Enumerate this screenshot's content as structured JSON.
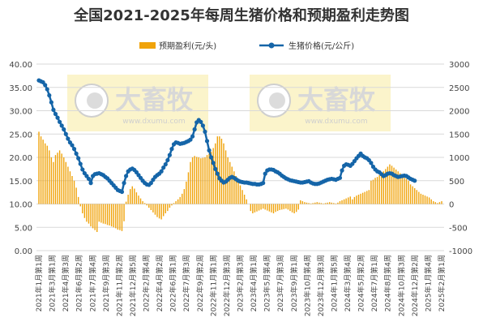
{
  "chart_data": {
    "type": "bar+line",
    "title": "全国2021-2025年每周生猪价格和预期盈利走势图",
    "legend": {
      "placement": "top",
      "entries": [
        {
          "name": "预期盈利(元/头)",
          "kind": "bar",
          "color": "#F0A30A"
        },
        {
          "name": "生猪价格(元/公斤)",
          "kind": "line",
          "color": "#1565A8"
        }
      ]
    },
    "watermark_text": "www.dxumu.com",
    "left_axis": {
      "min": 0,
      "max": 40,
      "step": 5,
      "ticks": [
        "0.00",
        "5.00",
        "10.00",
        "15.00",
        "20.00",
        "25.00",
        "30.00",
        "35.00",
        "40.00"
      ]
    },
    "right_axis": {
      "min": -1000,
      "max": 3000,
      "step": 500,
      "ticks": [
        "-1000",
        "-500",
        "0",
        "500",
        "1000",
        "1500",
        "2000",
        "2500",
        "3000"
      ]
    },
    "x_tick_labels": [
      "2021年1月第1周",
      "2021年3月第1周",
      "2021年4月第3周",
      "2021年6月第2周",
      "2021年7月第4周",
      "2021年9月第3周",
      "2021年11月第2周",
      "2021年12月第5周",
      "2022年2月第4周",
      "2022年4月第2周",
      "2022年6月第1周",
      "2022年7月第3周",
      "2022年9月第2周",
      "2022年11月第1周",
      "2022年12月第3周",
      "2023年2月第3周",
      "2023年4月第1周",
      "2023年5月第4周",
      "2023年7月第3周",
      "2023年9月第1周",
      "2023年10月第4周",
      "2023年12月第3周",
      "2024年1月第5周",
      "2024年3月第4周",
      "2024年5月第2周",
      "2024年7月第1周",
      "2024年8月第4周",
      "2024年10月第3周",
      "2024年12月第2周",
      "2025年1月第4周",
      "2025年2月第1周"
    ],
    "series": [
      {
        "name": "生猪价格(元/公斤)",
        "axis": "left",
        "values": [
          36.5,
          36.3,
          36.1,
          35.5,
          34.6,
          33.3,
          31.8,
          30.2,
          29.3,
          28.5,
          27.6,
          26.8,
          26.0,
          25.0,
          24.0,
          23.2,
          22.6,
          21.8,
          20.8,
          19.8,
          18.6,
          17.4,
          16.6,
          16.0,
          15.4,
          14.5,
          16.0,
          16.4,
          16.5,
          16.6,
          16.4,
          16.2,
          15.8,
          15.5,
          15.0,
          14.5,
          14.0,
          13.5,
          13.0,
          12.8,
          12.6,
          14.5,
          16.0,
          17.0,
          17.4,
          17.6,
          17.3,
          16.8,
          16.2,
          15.6,
          15.0,
          14.5,
          14.2,
          14.1,
          14.5,
          15.2,
          15.8,
          16.2,
          16.5,
          17.0,
          17.8,
          18.5,
          19.4,
          20.5,
          21.8,
          22.8,
          23.2,
          23.1,
          22.9,
          23.0,
          23.1,
          23.3,
          23.5,
          23.8,
          24.5,
          26.0,
          27.5,
          28.0,
          27.6,
          26.8,
          25.5,
          23.5,
          21.5,
          20.0,
          18.8,
          17.5,
          16.5,
          15.5,
          15.0,
          14.6,
          14.8,
          15.2,
          15.6,
          15.8,
          15.6,
          15.3,
          15.0,
          14.8,
          14.7,
          14.6,
          14.6,
          14.5,
          14.4,
          14.3,
          14.3,
          14.2,
          14.2,
          14.3,
          14.5,
          16.5,
          17.2,
          17.4,
          17.4,
          17.3,
          17.0,
          16.8,
          16.5,
          16.1,
          15.8,
          15.5,
          15.3,
          15.1,
          15.0,
          14.9,
          14.8,
          14.7,
          14.6,
          14.6,
          14.7,
          14.8,
          14.9,
          14.6,
          14.4,
          14.3,
          14.3,
          14.4,
          14.6,
          14.8,
          15.0,
          15.2,
          15.3,
          15.4,
          15.3,
          15.2,
          15.4,
          15.6,
          17.2,
          18.2,
          18.5,
          18.4,
          18.2,
          18.6,
          19.2,
          19.8,
          20.3,
          20.8,
          20.3,
          20.0,
          19.8,
          19.4,
          18.8,
          18.0,
          17.4,
          17.0,
          16.8,
          16.4,
          16.0,
          16.2,
          16.5,
          16.6,
          16.5,
          16.2,
          16.0,
          15.8,
          15.9,
          16.0,
          16.1,
          16.0,
          15.7,
          15.4,
          15.2,
          15.0
        ]
      },
      {
        "name": "预期盈利(元/头)",
        "axis": "right",
        "values": [
          1550,
          1450,
          1380,
          1300,
          1250,
          1150,
          1000,
          900,
          1050,
          1100,
          1150,
          1080,
          1000,
          900,
          800,
          700,
          600,
          500,
          350,
          150,
          -50,
          -200,
          -300,
          -380,
          -420,
          -480,
          -520,
          -560,
          -600,
          -380,
          -400,
          -420,
          -430,
          -450,
          -460,
          -480,
          -500,
          -520,
          -550,
          -560,
          -580,
          -370,
          50,
          200,
          320,
          380,
          330,
          250,
          180,
          120,
          60,
          20,
          -30,
          -80,
          -130,
          -180,
          -230,
          -280,
          -310,
          -330,
          -260,
          -200,
          -150,
          -80,
          -30,
          20,
          60,
          100,
          150,
          220,
          320,
          480,
          680,
          900,
          1000,
          1030,
          1010,
          1000,
          980,
          990,
          1000,
          1050,
          1080,
          1120,
          1200,
          1300,
          1450,
          1450,
          1400,
          1300,
          1150,
          1000,
          900,
          800,
          700,
          600,
          500,
          400,
          300,
          200,
          100,
          0,
          -150,
          -200,
          -180,
          -160,
          -140,
          -120,
          -100,
          -120,
          -140,
          -160,
          -180,
          -200,
          -170,
          -150,
          -130,
          -120,
          -110,
          -100,
          -120,
          -150,
          -180,
          -200,
          -170,
          -120,
          80,
          60,
          40,
          30,
          20,
          10,
          20,
          30,
          40,
          30,
          20,
          10,
          20,
          30,
          40,
          30,
          20,
          10,
          30,
          60,
          80,
          100,
          120,
          140,
          160,
          100,
          150,
          180,
          200,
          220,
          240,
          260,
          280,
          300,
          500,
          520,
          560,
          580,
          620,
          660,
          700,
          750,
          800,
          850,
          820,
          780,
          740,
          700,
          660,
          620,
          580,
          540,
          500,
          420,
          380,
          340,
          300,
          260,
          220,
          200,
          180,
          160,
          140,
          100,
          60,
          40,
          20,
          40,
          60
        ]
      }
    ]
  }
}
